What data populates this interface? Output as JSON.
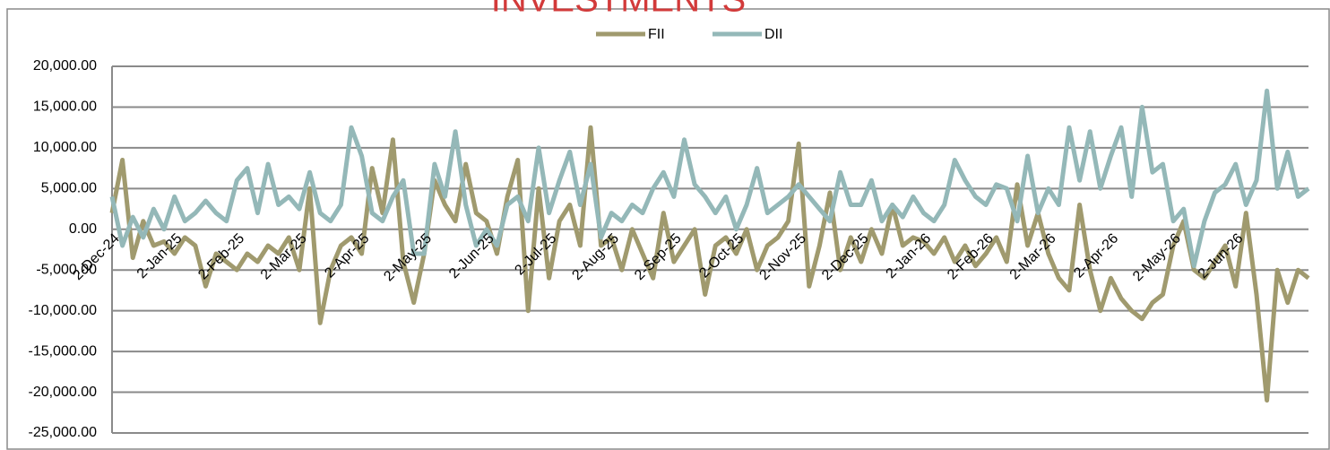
{
  "chart_data": {
    "type": "line",
    "title": "INVESTMENTS",
    "categories": [
      "2-Dec-24",
      null,
      null,
      null,
      null,
      null,
      "2-Jan-25",
      null,
      null,
      null,
      null,
      null,
      "2-Feb-25",
      null,
      null,
      null,
      null,
      null,
      "2-Mar-25",
      null,
      null,
      null,
      null,
      null,
      "2-Apr-25",
      null,
      null,
      null,
      null,
      null,
      "2-May-25",
      null,
      null,
      null,
      null,
      null,
      "2-Jun-25",
      null,
      null,
      null,
      null,
      null,
      "2-Jul-25",
      null,
      null,
      null,
      null,
      null,
      "2-Aug-25",
      null,
      null,
      null,
      null,
      null,
      "2-Sep-25",
      null,
      null,
      null,
      null,
      null,
      "2-Oct-25",
      null,
      null,
      null,
      null,
      null,
      "2-Nov-25",
      null,
      null,
      null,
      null,
      null,
      "2-Dec-25",
      null,
      null,
      null,
      null,
      null,
      "2-Jan-26",
      null,
      null,
      null,
      null,
      null,
      "2-Feb-26",
      null,
      null,
      null,
      null,
      null,
      "2-Mar-26",
      null,
      null,
      null,
      null,
      null,
      "2-Apr-26",
      null,
      null,
      null,
      null,
      null,
      "2-May-26",
      null,
      null,
      null,
      null,
      null,
      "2-Jun-26",
      null,
      null,
      null,
      null,
      null,
      null,
      null
    ],
    "series": [
      {
        "name": "FII",
        "color": "#a09a6e",
        "values": [
          2000,
          8500,
          -3500,
          1000,
          -2000,
          -1500,
          -3000,
          -1000,
          -2000,
          -7000,
          -3000,
          -4000,
          -5000,
          -3000,
          -4000,
          -2000,
          -3000,
          -1000,
          -5000,
          5000,
          -11500,
          -5000,
          -2000,
          -1000,
          -3000,
          7500,
          2000,
          11000,
          -4000,
          -9000,
          -3000,
          6000,
          3000,
          1000,
          8000,
          2000,
          1000,
          -3000,
          4000,
          8500,
          -10000,
          5000,
          -6000,
          1000,
          3000,
          -2000,
          12500,
          -2000,
          -1000,
          -5000,
          0,
          -3000,
          -6000,
          2000,
          -4000,
          -2000,
          0,
          -8000,
          -2000,
          -1000,
          -3000,
          0,
          -5000,
          -2000,
          -1000,
          1000,
          10500,
          -7000,
          -2000,
          4500,
          -5000,
          -1000,
          -4000,
          0,
          -3000,
          3000,
          -2000,
          -1000,
          -1500,
          -3000,
          -1000,
          -4000,
          -2000,
          -4500,
          -3000,
          -1000,
          -4000,
          5500,
          -2000,
          2000,
          -3000,
          -6000,
          -7500,
          3000,
          -5000,
          -10000,
          -6000,
          -8500,
          -10000,
          -11000,
          -9000,
          -8000,
          -2000,
          1000,
          -5000,
          -6000,
          -4000,
          -2000,
          -7000,
          2000,
          -8000,
          -21000,
          -5000,
          -9000,
          -5000,
          -6000
        ]
      },
      {
        "name": "DII",
        "color": "#94b8b8",
        "values": [
          4000,
          -2000,
          1500,
          -1000,
          2500,
          0,
          4000,
          1000,
          2000,
          3500,
          2000,
          1000,
          6000,
          7500,
          2000,
          8000,
          3000,
          4000,
          2500,
          7000,
          2000,
          1000,
          3000,
          12500,
          9000,
          2000,
          1000,
          4000,
          6000,
          -3000,
          -3000,
          8000,
          4000,
          12000,
          3000,
          -2000,
          0,
          -2000,
          3000,
          4000,
          1000,
          10000,
          2000,
          6000,
          9500,
          3000,
          8000,
          -1000,
          2000,
          1000,
          3000,
          2000,
          5000,
          7000,
          4000,
          11000,
          5500,
          4000,
          2000,
          4000,
          0,
          3000,
          7500,
          2000,
          3000,
          4000,
          5500,
          4000,
          2500,
          1000,
          7000,
          3000,
          3000,
          6000,
          1000,
          3000,
          1500,
          4000,
          2000,
          1000,
          3000,
          8500,
          6000,
          4000,
          3000,
          5500,
          5000,
          1000,
          9000,
          2000,
          5000,
          3000,
          12500,
          6000,
          12000,
          5000,
          9000,
          12500,
          4000,
          15000,
          7000,
          8000,
          1000,
          2500,
          -4500,
          1000,
          4500,
          5500,
          8000,
          3000,
          6000,
          17000,
          5000,
          9500,
          4000,
          5000
        ]
      }
    ],
    "ylim": [
      -25000,
      20000
    ],
    "yticks": [
      {
        "value": -25000,
        "label": "-25,000.00"
      },
      {
        "value": -20000,
        "label": "-20,000.00"
      },
      {
        "value": -15000,
        "label": "-15,000.00"
      },
      {
        "value": -10000,
        "label": "-10,000.00"
      },
      {
        "value": -5000,
        "label": "-5,000.00"
      },
      {
        "value": 0,
        "label": "0.00"
      },
      {
        "value": 5000,
        "label": "5,000.00"
      },
      {
        "value": 10000,
        "label": "10,000.00"
      },
      {
        "value": 15000,
        "label": "15,000.00"
      },
      {
        "value": 20000,
        "label": "20,000.00"
      }
    ],
    "grid": true,
    "legend": "top"
  }
}
